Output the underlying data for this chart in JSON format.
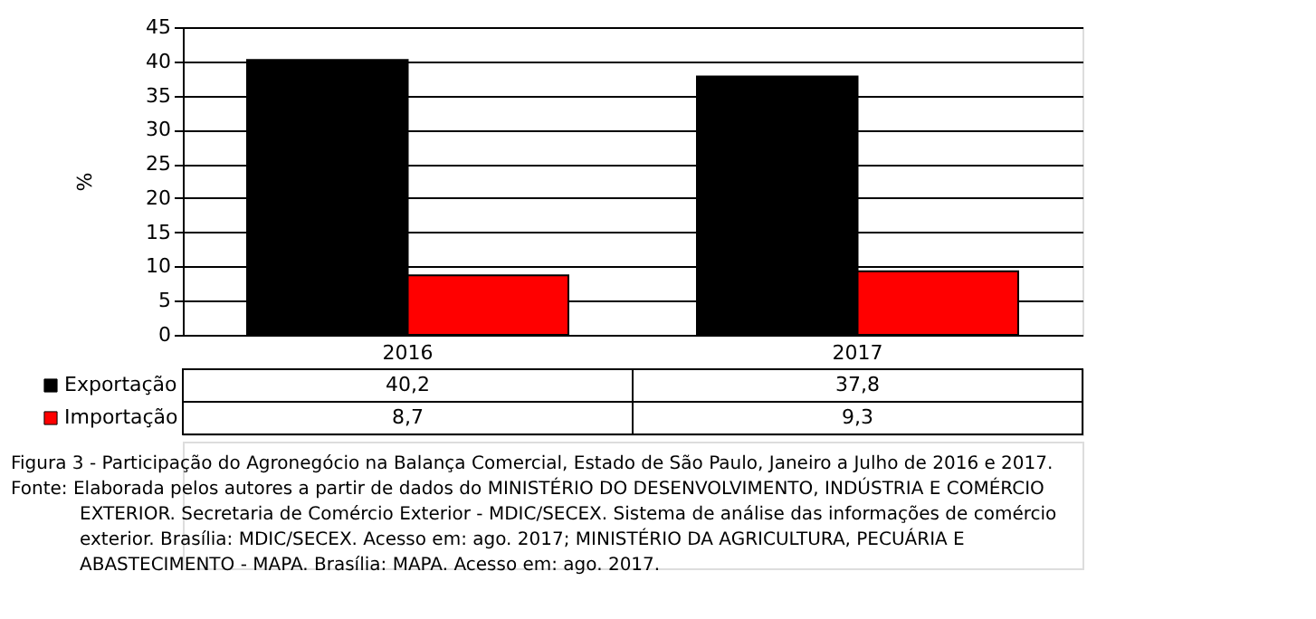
{
  "chart_data": {
    "type": "bar",
    "ylabel": "%",
    "categories": [
      "2016",
      "2017"
    ],
    "series": [
      {
        "name": "Exportação",
        "color": "#000000",
        "values": [
          40.2,
          37.8
        ],
        "value_labels": [
          "40,2",
          "37,8"
        ]
      },
      {
        "name": "Importação",
        "color": "#ff0000",
        "values": [
          8.7,
          9.3
        ],
        "value_labels": [
          "8,7",
          "9,3"
        ]
      }
    ],
    "ylim": [
      0,
      45
    ],
    "yticks": [
      0,
      5,
      10,
      15,
      20,
      25,
      30,
      35,
      40,
      45
    ],
    "grid": "y",
    "legend": "bottom",
    "annotations": [
      "Figura 3 - Participação do Agronegócio na Balança Comercial, Estado de São Paulo, Janeiro a Julho de 2016 e 2017.",
      "Fonte: Elaborada pelos autores a partir de dados do MINISTÉRIO DO DESENVOLVIMENTO, INDÚSTRIA E COMÉRCIO EXTERIOR. Secretaria de Comércio Exterior - MDIC/SECEX. Sistema de análise das informações de comércio exterior. Brasília: MDIC/SECEX. Acesso em: ago. 2017; MINISTÉRIO DA AGRICULTURA, PECUÁRIA E ABASTECIMENTO - MAPA. Brasília: MAPA. Acesso em: ago. 2017."
    ]
  }
}
